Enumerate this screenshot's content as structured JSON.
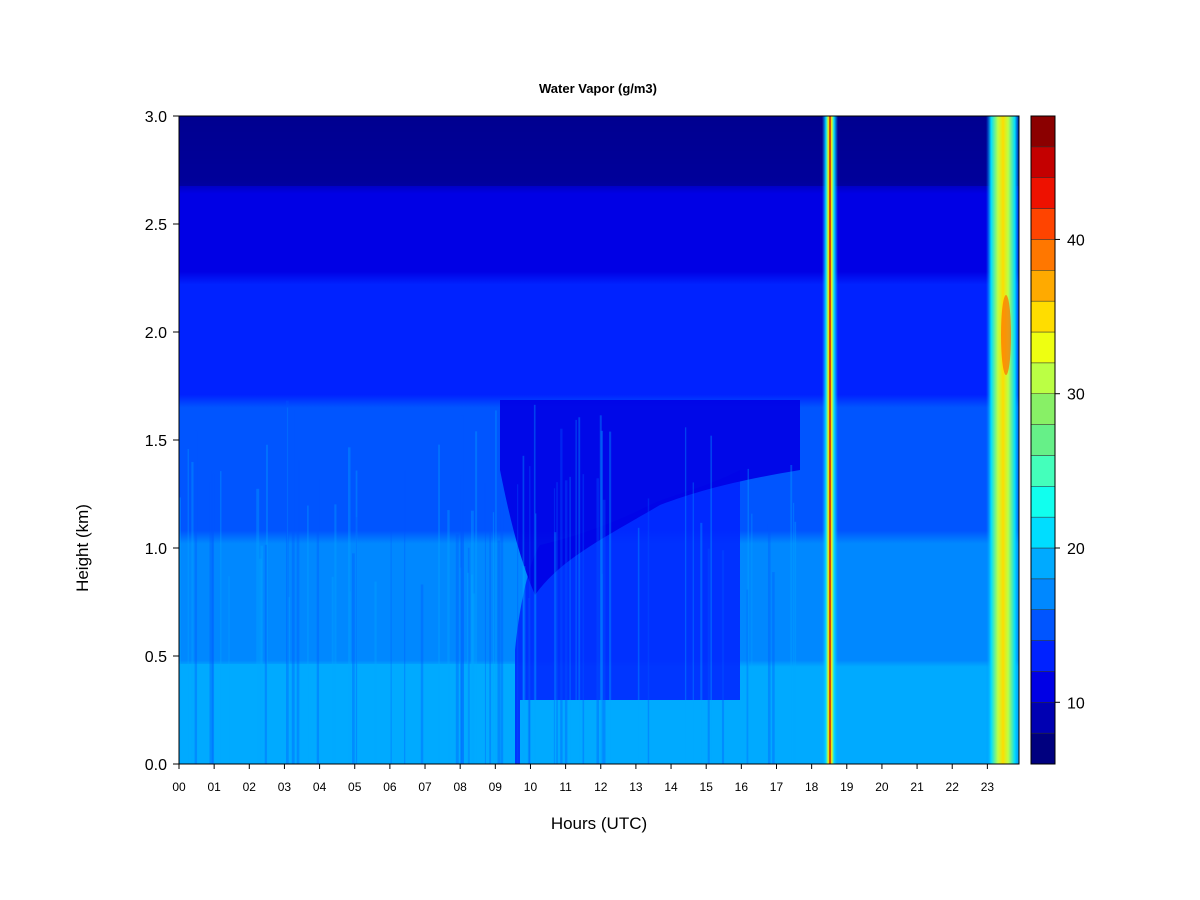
{
  "chart_data": {
    "type": "heatmap",
    "title": "Water Vapor (g/m3)",
    "xlabel": "Hours (UTC)",
    "ylabel": "Height (km)",
    "x_ticks": [
      "00",
      "01",
      "02",
      "03",
      "04",
      "05",
      "06",
      "07",
      "08",
      "09",
      "10",
      "11",
      "12",
      "13",
      "14",
      "15",
      "16",
      "17",
      "18",
      "19",
      "20",
      "21",
      "22",
      "23"
    ],
    "x_range": [
      0,
      23.9
    ],
    "y_ticks": [
      "0.0",
      "0.5",
      "1.0",
      "1.5",
      "2.0",
      "2.5",
      "3.0"
    ],
    "y_range": [
      0,
      3.0
    ],
    "colorbar": {
      "range": [
        6,
        48
      ],
      "ticks": [
        "10",
        "20",
        "30",
        "40"
      ],
      "levels": [
        6,
        8,
        10,
        12,
        14,
        16,
        18,
        20,
        22,
        24,
        26,
        28,
        30,
        32,
        34,
        36,
        38,
        40,
        42,
        44,
        46,
        48
      ],
      "colors": [
        "#00007F",
        "#0000B2",
        "#0000E5",
        "#0022FF",
        "#0055FF",
        "#0088FF",
        "#00AAFF",
        "#00DDFF",
        "#11FFEE",
        "#44FFBB",
        "#66F088",
        "#88F066",
        "#BBFF44",
        "#EEFF11",
        "#FFDD00",
        "#FFAA00",
        "#FF7700",
        "#FF4400",
        "#EE1100",
        "#C40000",
        "#8B0000"
      ]
    },
    "height_km": [
      0.0,
      0.25,
      0.5,
      0.75,
      1.0,
      1.25,
      1.5,
      1.75,
      2.0,
      2.25,
      2.5,
      2.75,
      3.0
    ],
    "profiles": [
      {
        "hour": 0,
        "wv": [
          20,
          19,
          17,
          16,
          15,
          14,
          13,
          12,
          11,
          11,
          10,
          9,
          8
        ]
      },
      {
        "hour": 3,
        "wv": [
          20,
          19,
          17,
          16,
          15,
          14,
          13,
          12,
          11,
          11,
          10,
          9,
          8
        ]
      },
      {
        "hour": 6,
        "wv": [
          20,
          19,
          17,
          16,
          15,
          14,
          13,
          12,
          11,
          11,
          10,
          9,
          8
        ]
      },
      {
        "hour": 9,
        "wv": [
          20,
          19,
          16,
          15,
          14,
          13,
          12,
          11,
          11,
          10,
          10,
          9,
          8
        ]
      },
      {
        "hour": 10,
        "wv": [
          19,
          17,
          15,
          13,
          12,
          12,
          11,
          11,
          10,
          10,
          9,
          8,
          7
        ]
      },
      {
        "hour": 12,
        "wv": [
          20,
          19,
          16,
          15,
          14,
          13,
          12,
          11,
          11,
          10,
          10,
          9,
          8
        ]
      },
      {
        "hour": 15,
        "wv": [
          19,
          18,
          16,
          15,
          14,
          13,
          12,
          11,
          11,
          11,
          10,
          9,
          8
        ]
      },
      {
        "hour": 18,
        "wv": [
          18,
          17,
          16,
          15,
          14,
          13,
          12,
          12,
          11,
          11,
          10,
          9,
          8
        ]
      },
      {
        "hour": 18.5,
        "wv": [
          20,
          22,
          28,
          36,
          40,
          42,
          44,
          46,
          47,
          46,
          45,
          44,
          42
        ]
      },
      {
        "hour": 20,
        "wv": [
          18,
          17,
          15,
          14,
          14,
          13,
          12,
          12,
          11,
          11,
          10,
          9,
          8
        ]
      },
      {
        "hour": 22,
        "wv": [
          18,
          17,
          15,
          14,
          14,
          13,
          12,
          12,
          11,
          11,
          10,
          9,
          8
        ]
      },
      {
        "hour": 23.4,
        "wv": [
          19,
          20,
          22,
          25,
          27,
          30,
          32,
          33,
          35,
          34,
          33,
          32,
          31
        ]
      }
    ]
  }
}
